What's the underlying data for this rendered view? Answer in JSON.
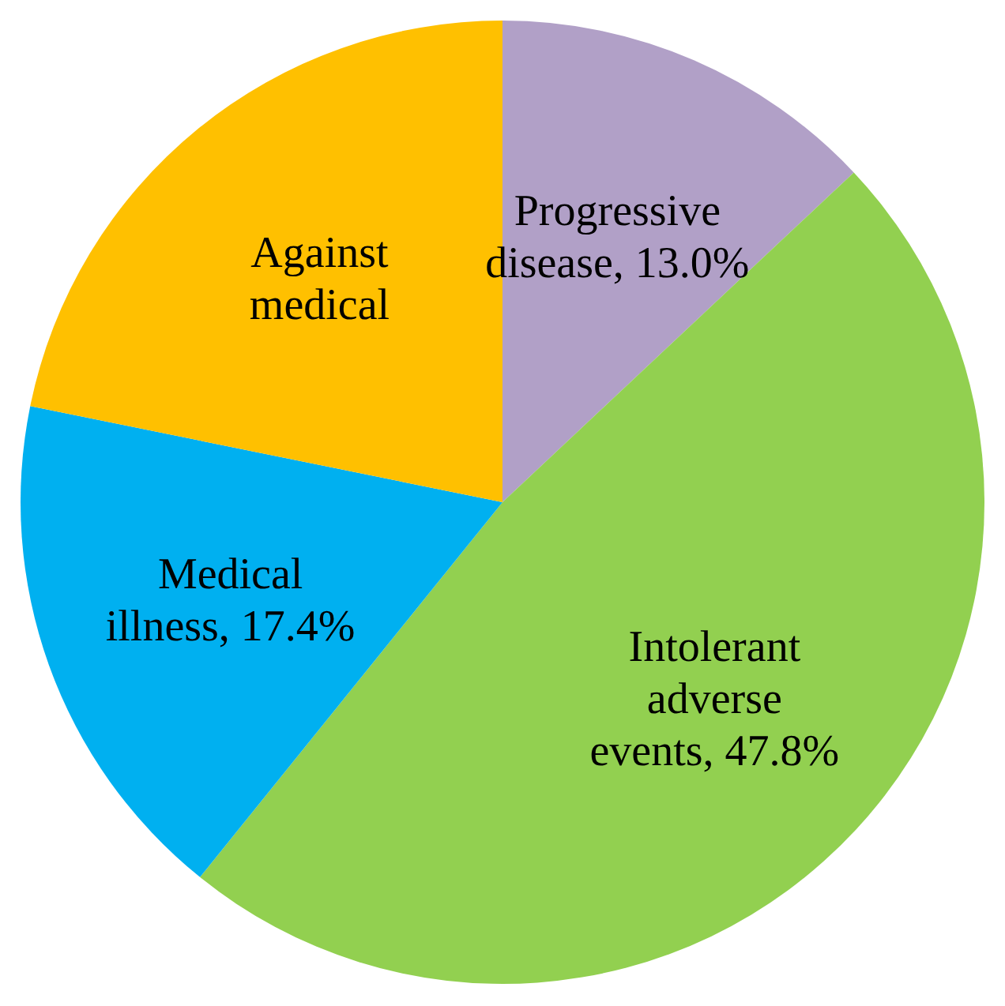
{
  "chart_data": {
    "type": "pie",
    "categories": [
      "Progressive disease",
      "Intolerant adverse events",
      "Medical illness",
      "Against medical"
    ],
    "values": [
      13.0,
      47.8,
      17.4,
      21.8
    ],
    "value_labels": [
      "13.0%",
      "47.8%",
      "17.4%",
      null
    ],
    "colors": [
      "#b1a0c7",
      "#92d050",
      "#00b0f0",
      "#ffc000"
    ],
    "legend": false
  }
}
